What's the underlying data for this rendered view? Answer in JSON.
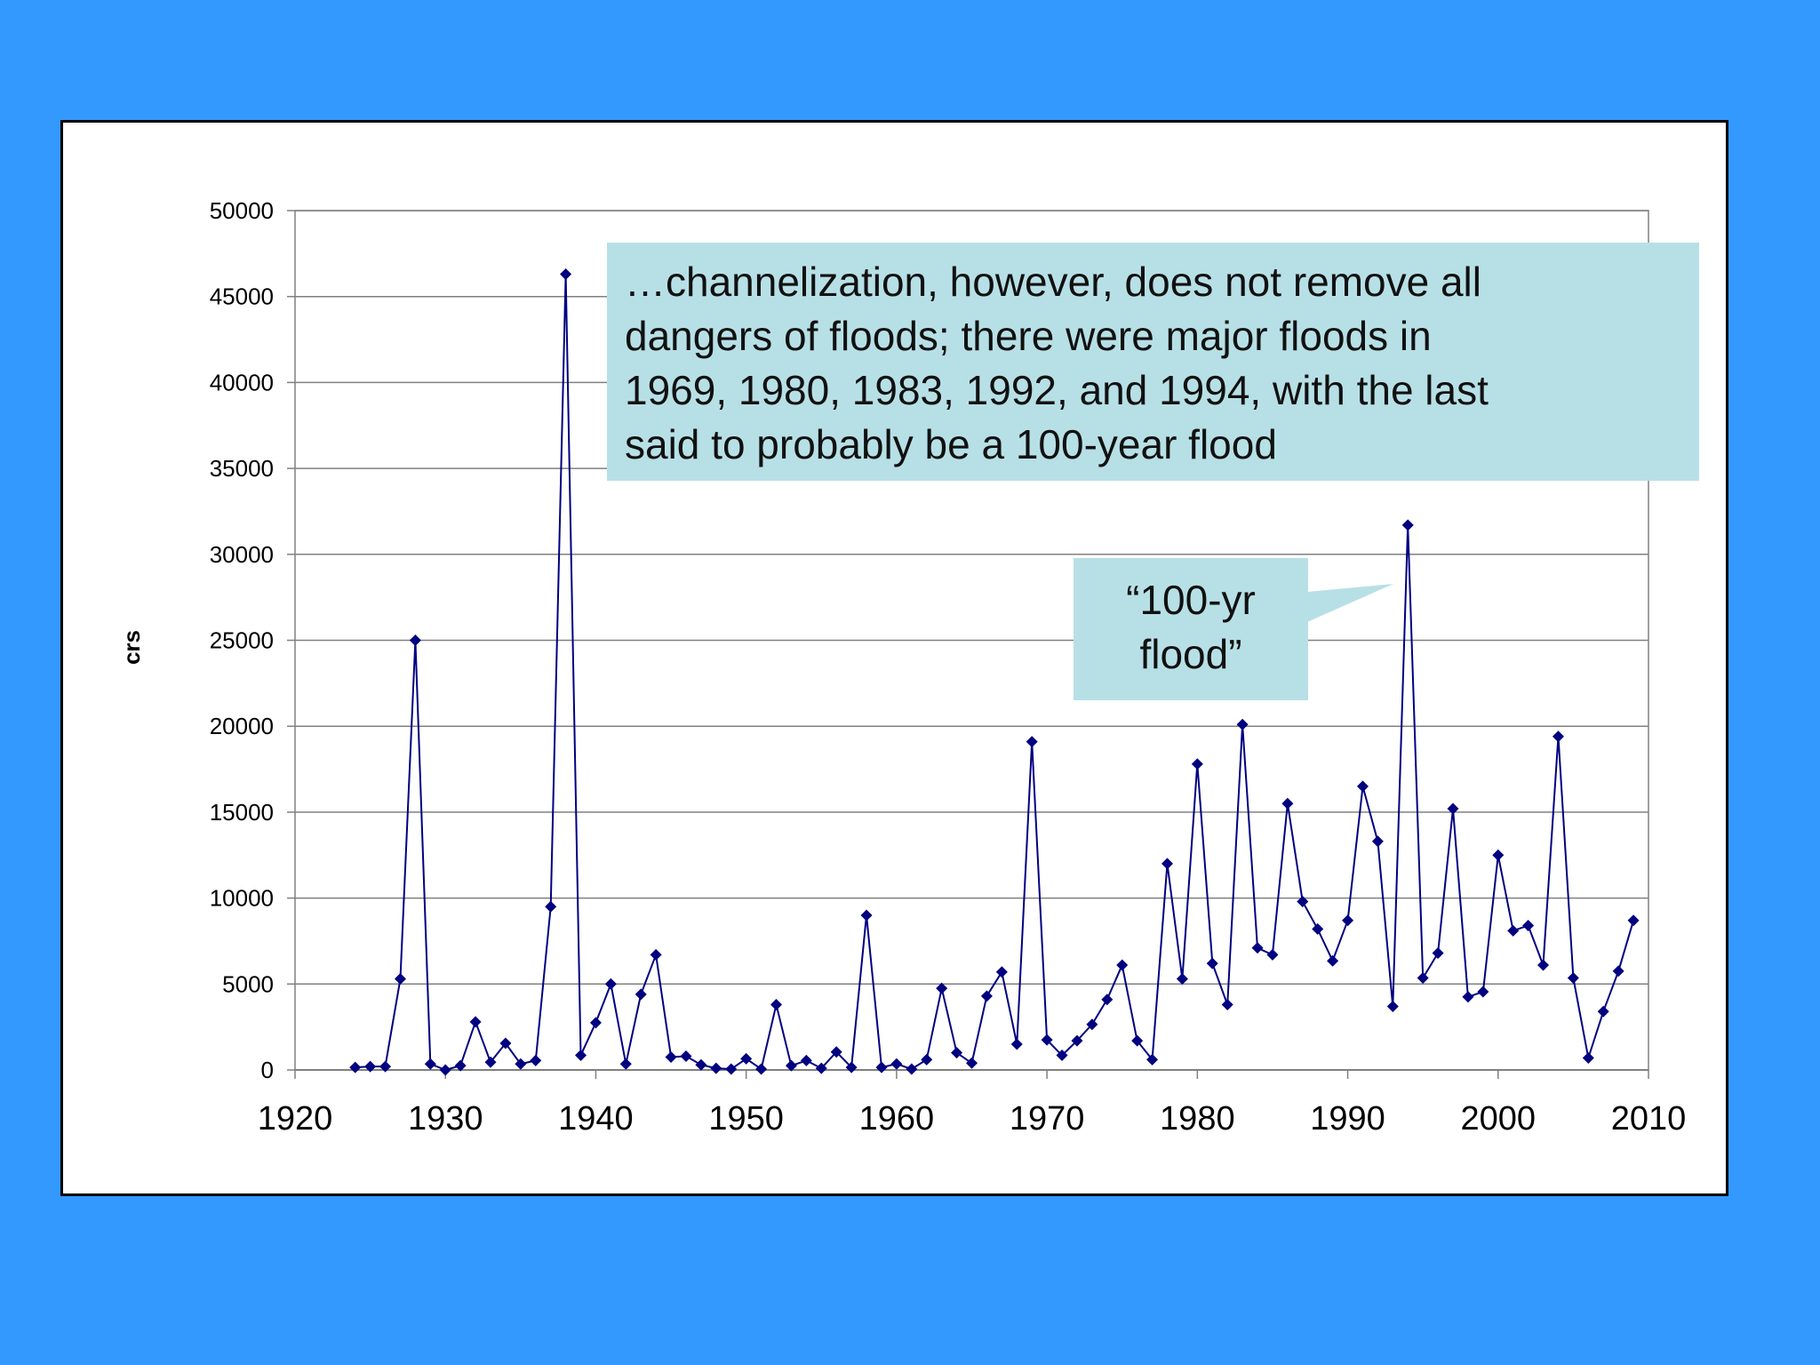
{
  "chart_data": {
    "type": "line",
    "title": "",
    "xlabel": "",
    "ylabel": "crs",
    "xlim": [
      1920,
      2010
    ],
    "ylim": [
      0,
      50000
    ],
    "x_ticks": [
      "1920",
      "1930",
      "1940",
      "1950",
      "1960",
      "1970",
      "1980",
      "1990",
      "2000",
      "2010"
    ],
    "y_ticks": [
      "0",
      "5000",
      "10000",
      "15000",
      "20000",
      "25000",
      "30000",
      "35000",
      "40000",
      "45000",
      "50000"
    ],
    "grid": true,
    "legend": "none",
    "marker": "diamond",
    "series_color": "#000080",
    "x": [
      1924,
      1925,
      1926,
      1927,
      1928,
      1929,
      1930,
      1931,
      1932,
      1933,
      1934,
      1935,
      1936,
      1937,
      1938,
      1939,
      1940,
      1941,
      1942,
      1943,
      1944,
      1945,
      1946,
      1947,
      1948,
      1949,
      1950,
      1951,
      1952,
      1953,
      1954,
      1955,
      1956,
      1957,
      1958,
      1959,
      1960,
      1961,
      1962,
      1963,
      1964,
      1965,
      1966,
      1967,
      1968,
      1969,
      1970,
      1971,
      1972,
      1973,
      1974,
      1975,
      1976,
      1977,
      1978,
      1979,
      1980,
      1981,
      1982,
      1983,
      1984,
      1985,
      1986,
      1987,
      1988,
      1989,
      1990,
      1991,
      1992,
      1993,
      1994,
      1995,
      1996,
      1997,
      1998,
      1999,
      2000,
      2001,
      2002,
      2003,
      2004,
      2005,
      2006,
      2007,
      2008,
      2009
    ],
    "values": [
      150,
      200,
      200,
      5300,
      25000,
      350,
      0,
      250,
      2800,
      450,
      1550,
      350,
      550,
      9500,
      46300,
      850,
      2750,
      5000,
      350,
      4400,
      6700,
      750,
      800,
      300,
      100,
      50,
      650,
      50,
      3800,
      250,
      550,
      100,
      1050,
      150,
      9000,
      150,
      350,
      50,
      600,
      4750,
      1000,
      400,
      4300,
      5700,
      1500,
      19100,
      1750,
      850,
      1700,
      2650,
      4100,
      6100,
      1700,
      600,
      12000,
      5300,
      17800,
      6200,
      3800,
      20100,
      7100,
      6700,
      15500,
      9800,
      8200,
      6350,
      8700,
      16500,
      13300,
      3700,
      31700,
      5350,
      6800,
      15200,
      4250,
      4550,
      12500,
      8100,
      8400,
      6100,
      19400,
      5350,
      700,
      3400,
      5750,
      8700
    ]
  },
  "annotations": {
    "main_lines": [
      "…channelization, however, does not remove all",
      "dangers of floods; there were major floods in",
      "1969, 1980, 1983, 1992, and 1994, with the last",
      "said to probably be a 100-year flood"
    ],
    "flood_lines": [
      "“100-yr",
      "flood”"
    ],
    "callout_color": "#b7e0e6"
  }
}
